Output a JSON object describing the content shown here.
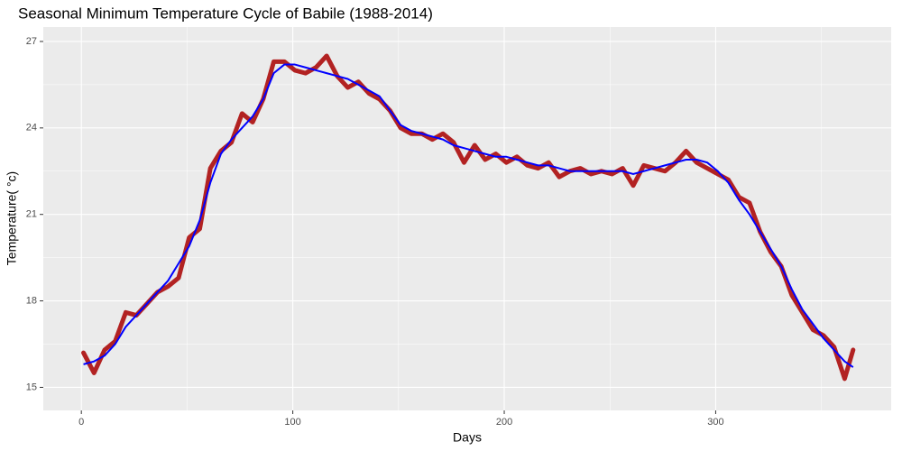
{
  "chart_data": {
    "type": "line",
    "title": "Seasonal Minimum Temperature Cycle of Babile (1988-2014)",
    "x_label": "Days",
    "y_label": "Temperature( °c)",
    "x": [
      1,
      6,
      11,
      16,
      21,
      26,
      31,
      36,
      41,
      46,
      51,
      56,
      61,
      66,
      71,
      76,
      81,
      86,
      91,
      96,
      101,
      106,
      111,
      116,
      121,
      126,
      131,
      136,
      141,
      146,
      151,
      156,
      161,
      166,
      171,
      176,
      181,
      186,
      191,
      196,
      201,
      206,
      211,
      216,
      221,
      226,
      231,
      236,
      241,
      246,
      251,
      256,
      261,
      266,
      271,
      276,
      281,
      286,
      291,
      296,
      301,
      306,
      311,
      316,
      321,
      326,
      331,
      336,
      341,
      346,
      351,
      356,
      361,
      365
    ],
    "series": [
      {
        "color": "#b22222",
        "values": [
          16.2,
          15.5,
          16.3,
          16.6,
          17.6,
          17.5,
          17.9,
          18.3,
          18.5,
          18.8,
          20.2,
          20.5,
          22.6,
          23.2,
          23.5,
          24.5,
          24.2,
          25.0,
          26.3,
          26.3,
          26.0,
          25.9,
          26.1,
          26.5,
          25.8,
          25.4,
          25.6,
          25.2,
          25.0,
          24.6,
          24.0,
          23.8,
          23.8,
          23.6,
          23.8,
          23.5,
          22.8,
          23.4,
          22.9,
          23.1,
          22.8,
          23.0,
          22.7,
          22.6,
          22.8,
          22.3,
          22.5,
          22.6,
          22.4,
          22.5,
          22.4,
          22.6,
          22.0,
          22.7,
          22.6,
          22.5,
          22.8,
          23.2,
          22.8,
          22.6,
          22.4,
          22.2,
          21.6,
          21.4,
          20.4,
          19.7,
          19.2,
          18.2,
          17.6,
          17.0,
          16.8,
          16.4,
          15.3,
          16.3
        ]
      },
      {
        "color": "#0000ff",
        "values": [
          15.8,
          15.9,
          16.1,
          16.5,
          17.1,
          17.5,
          17.9,
          18.3,
          18.7,
          19.3,
          19.9,
          20.8,
          22.1,
          23.1,
          23.6,
          24.0,
          24.4,
          25.0,
          25.9,
          26.2,
          26.2,
          26.1,
          26.0,
          25.9,
          25.8,
          25.7,
          25.5,
          25.3,
          25.1,
          24.6,
          24.1,
          23.9,
          23.8,
          23.7,
          23.6,
          23.4,
          23.3,
          23.2,
          23.1,
          23.0,
          23.0,
          22.9,
          22.8,
          22.7,
          22.7,
          22.6,
          22.5,
          22.5,
          22.5,
          22.5,
          22.5,
          22.5,
          22.4,
          22.5,
          22.6,
          22.7,
          22.8,
          22.9,
          22.9,
          22.8,
          22.5,
          22.1,
          21.5,
          21.0,
          20.4,
          19.8,
          19.2,
          18.4,
          17.7,
          17.2,
          16.7,
          16.3,
          15.9,
          15.7
        ]
      }
    ],
    "xlim": [
      -18,
      383
    ],
    "xticks": [
      0,
      100,
      200,
      300
    ],
    "xminor": [
      50,
      150,
      250,
      350
    ],
    "ylim": [
      14.2,
      27.5
    ],
    "yticks": [
      15,
      18,
      21,
      24,
      27
    ],
    "yminor": [
      16.5,
      19.5,
      22.5,
      25.5
    ],
    "grid": true,
    "panel_color": "#ebebeb"
  }
}
